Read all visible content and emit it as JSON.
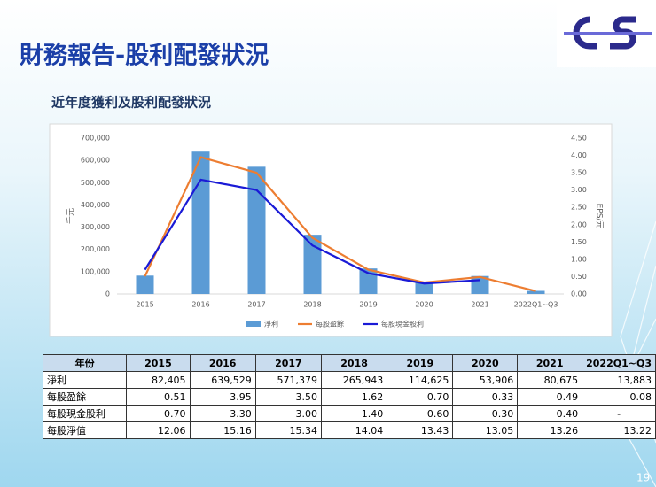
{
  "header": {
    "title": "財務報告-股利配發狀況",
    "subtitle": "近年度獲利及股利配發狀況"
  },
  "chart_data": {
    "type": "combo",
    "categories": [
      "2015",
      "2016",
      "2017",
      "2018",
      "2019",
      "2020",
      "2021",
      "2022Q1~Q3"
    ],
    "series": [
      {
        "name": "淨利",
        "type": "bar",
        "color": "#5b9bd5",
        "values": [
          82405,
          639529,
          571379,
          265943,
          114625,
          53906,
          80675,
          13883
        ]
      },
      {
        "name": "每股盈餘",
        "type": "line",
        "axis": "y2",
        "color": "#ed7d31",
        "values": [
          0.51,
          3.95,
          3.5,
          1.62,
          0.7,
          0.33,
          0.49,
          0.08
        ]
      },
      {
        "name": "每股現金股利",
        "type": "line",
        "axis": "y2",
        "color": "#1a1ad6",
        "values": [
          0.7,
          3.3,
          3.0,
          1.4,
          0.6,
          0.3,
          0.4,
          null
        ]
      }
    ],
    "ylabel": "千元",
    "y2label": "EPS/元",
    "ylim": [
      0,
      700000
    ],
    "yticks": [
      0,
      {
        "value": 100000,
        "label": "100,000"
      },
      {
        "value": 200000,
        "label": "200,000"
      },
      {
        "value": 300000,
        "label": "300,000"
      },
      {
        "value": 400000,
        "label": "400,000"
      },
      {
        "value": 500000,
        "label": "500,000"
      },
      {
        "value": 600000,
        "label": "600,000"
      },
      {
        "value": 700000,
        "label": "700,000"
      }
    ],
    "y2lim": [
      0,
      4.5
    ],
    "y2ticks": [
      {
        "value": 0,
        "label": "0.00"
      },
      {
        "value": 0.5,
        "label": "0.50"
      },
      {
        "value": 1,
        "label": "1.00"
      },
      {
        "value": 1.5,
        "label": "1.50"
      },
      {
        "value": 2,
        "label": "2.00"
      },
      {
        "value": 2.5,
        "label": "2.50"
      },
      {
        "value": 3,
        "label": "3.00"
      },
      {
        "value": 3.5,
        "label": "3.50"
      },
      {
        "value": 4,
        "label": "4.00"
      },
      {
        "value": 4.5,
        "label": "4.50"
      }
    ],
    "grid": false,
    "legend": "bottom"
  },
  "table": {
    "header": [
      "年份",
      "2015",
      "2016",
      "2017",
      "2018",
      "2019",
      "2020",
      "2021",
      "2022Q1~Q3"
    ],
    "rows": [
      [
        "淨利",
        "82,405",
        "639,529",
        "571,379",
        "265,943",
        "114,625",
        "53,906",
        "80,675",
        "13,883"
      ],
      [
        "每股盈餘",
        "0.51",
        "3.95",
        "3.50",
        "1.62",
        "0.70",
        "0.33",
        "0.49",
        "0.08"
      ],
      [
        "每股現金股利",
        "0.70",
        "3.30",
        "3.00",
        "1.40",
        "0.60",
        "0.30",
        "0.40",
        "-"
      ],
      [
        "每股淨值",
        "12.06",
        "15.16",
        "15.34",
        "14.04",
        "13.43",
        "13.05",
        "13.26",
        "13.22"
      ]
    ]
  },
  "page_number": "19"
}
